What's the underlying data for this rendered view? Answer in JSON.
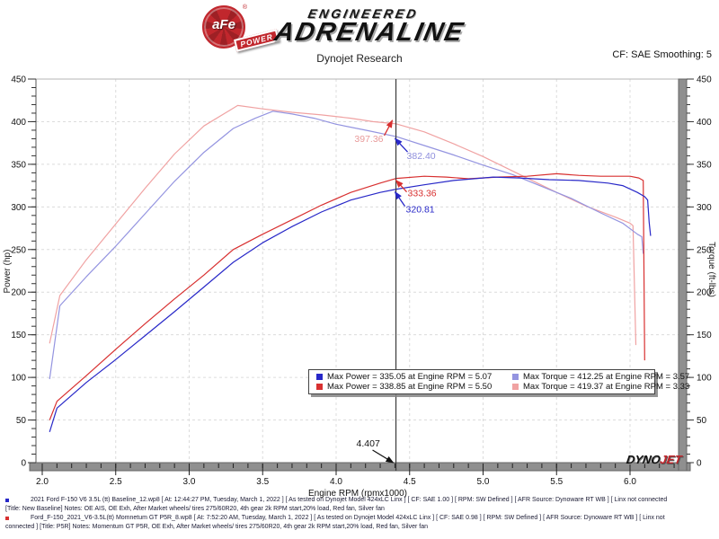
{
  "header": {
    "logo_circle": "aFe",
    "reg_mark": "®",
    "logo_banner": "POWER",
    "brand_line1": "ENGINEERED",
    "brand_line2": "ADRENALINE",
    "subtitle": "Dynojet Research",
    "smoothing": "CF: SAE Smoothing: 5"
  },
  "footer_logo": {
    "dyno": "DYNO",
    "jet": "JET"
  },
  "legend": {
    "entries": [
      {
        "label": "Max Power = 335.05 at Engine RPM = 5.07",
        "color": "#2828c8"
      },
      {
        "label": "Max Torque = 412.25 at Engine RPM = 3.57",
        "color": "#9494e0"
      },
      {
        "label": "Max Power = 338.85 at Engine RPM = 5.50",
        "color": "#d83030"
      },
      {
        "label": "Max Torque = 419.37 at Engine RPM = 3.33",
        "color": "#f0a2a2"
      }
    ]
  },
  "runs": [
    {
      "color": "#2828c8",
      "line1": "2021 Ford F-150 V6 3.5L (tt) Baseline_12.wp8 [ At: 12:44:27 PM, Tuesday, March 1, 2022 ] [ As tested on Dynojet Model 424xLC Linx ] [ CF: SAE 1.00 ] [ RPM: SW Defined ] [ AFR Source: Dynoware RT WB ] [ Linx not connected",
      "line2": "[Title: New Baseline]  Notes: OE AIS, OE Exh, After Market wheels/ tires 275/60R20, 4th gear 2k RPM start,20% load, Red fan, Silver fan"
    },
    {
      "color": "#d83030",
      "line1": "Ford_F-150_2021_V6-3.5L(tt) Momnetum GT P5R_8.wp8 [ At: 7:52:20 AM, Tuesday, March 1, 2022 ] [ As tested on Dynojet Model 424xLC Linx ] [ CF: SAE 0.98 ] [ RPM: SW Defined ] [ AFR Source: Dynoware RT WB ] [ Linx not",
      "line2": "connected ] [Title: P5R]  Notes: Momentum GT  P5R, OE Exh, After Market wheels/ tires 275/60R20, 4th gear 2k RPM start,20% load, Red fan, Silver fan"
    }
  ],
  "chart_data": {
    "type": "line",
    "xlabel": "Engine RPM (rpmx1000)",
    "ylabel_left": "Power (hp)",
    "ylabel_right": "Torque (ft-lbs)",
    "x_ticks": [
      "2.0",
      "2.5",
      "3.0",
      "3.5",
      "4.0",
      "4.5",
      "5.0",
      "5.5",
      "6.0"
    ],
    "x_minor_step": 0.1,
    "x_axis_max": 6.33,
    "y_ticks": [
      0,
      50,
      100,
      150,
      200,
      250,
      300,
      350,
      400,
      450
    ],
    "y_minor_step": 10,
    "y_range": [
      0,
      450
    ],
    "grid": true,
    "legend_position": "bottom-center",
    "cursor": {
      "rpm": 4.407,
      "label": "4.407"
    },
    "series": [
      {
        "name": "torque-momentum-gt",
        "axis": "right",
        "color": "#f0a2a2",
        "points": [
          [
            2.05,
            140
          ],
          [
            2.12,
            196
          ],
          [
            2.3,
            238
          ],
          [
            2.5,
            280
          ],
          [
            2.7,
            322
          ],
          [
            2.9,
            362
          ],
          [
            3.1,
            395
          ],
          [
            3.33,
            419
          ],
          [
            3.5,
            415
          ],
          [
            3.7,
            411
          ],
          [
            3.9,
            408
          ],
          [
            4.1,
            404
          ],
          [
            4.25,
            400
          ],
          [
            4.41,
            397.4
          ],
          [
            4.6,
            388
          ],
          [
            4.8,
            374
          ],
          [
            5.0,
            359
          ],
          [
            5.25,
            338
          ],
          [
            5.5,
            317
          ],
          [
            5.7,
            301
          ],
          [
            5.9,
            288
          ],
          [
            6.0,
            281
          ],
          [
            6.02,
            278
          ],
          [
            6.04,
            138
          ]
        ]
      },
      {
        "name": "torque-baseline",
        "axis": "right",
        "color": "#9494e0",
        "points": [
          [
            2.05,
            98
          ],
          [
            2.12,
            184
          ],
          [
            2.3,
            218
          ],
          [
            2.5,
            254
          ],
          [
            2.7,
            292
          ],
          [
            2.9,
            330
          ],
          [
            3.1,
            364
          ],
          [
            3.3,
            392
          ],
          [
            3.45,
            404
          ],
          [
            3.57,
            412.3
          ],
          [
            3.7,
            409
          ],
          [
            3.85,
            404
          ],
          [
            4.0,
            397
          ],
          [
            4.2,
            390
          ],
          [
            4.41,
            382.4
          ],
          [
            4.6,
            372
          ],
          [
            4.8,
            361
          ],
          [
            5.0,
            349
          ],
          [
            5.2,
            338
          ],
          [
            5.4,
            324
          ],
          [
            5.6,
            310
          ],
          [
            5.8,
            293
          ],
          [
            5.95,
            281
          ],
          [
            6.05,
            268
          ],
          [
            6.08,
            265
          ],
          [
            6.09,
            245
          ]
        ]
      },
      {
        "name": "power-momentum-gt",
        "axis": "left",
        "color": "#d83030",
        "points": [
          [
            2.05,
            50
          ],
          [
            2.1,
            72
          ],
          [
            2.3,
            102
          ],
          [
            2.5,
            133
          ],
          [
            2.7,
            163
          ],
          [
            2.9,
            192
          ],
          [
            3.1,
            220
          ],
          [
            3.3,
            250
          ],
          [
            3.5,
            268
          ],
          [
            3.7,
            285
          ],
          [
            3.9,
            302
          ],
          [
            4.1,
            317
          ],
          [
            4.3,
            328
          ],
          [
            4.41,
            333.4
          ],
          [
            4.6,
            336
          ],
          [
            4.75,
            335
          ],
          [
            4.9,
            333
          ],
          [
            5.1,
            335
          ],
          [
            5.3,
            336
          ],
          [
            5.5,
            338.9
          ],
          [
            5.65,
            337
          ],
          [
            5.8,
            336
          ],
          [
            6.0,
            336
          ],
          [
            6.06,
            334
          ],
          [
            6.09,
            331
          ],
          [
            6.1,
            120
          ]
        ]
      },
      {
        "name": "power-baseline",
        "axis": "left",
        "color": "#2828c8",
        "points": [
          [
            2.05,
            36
          ],
          [
            2.1,
            64
          ],
          [
            2.3,
            94
          ],
          [
            2.5,
            121
          ],
          [
            2.7,
            149
          ],
          [
            2.9,
            177
          ],
          [
            3.1,
            206
          ],
          [
            3.3,
            235
          ],
          [
            3.5,
            258
          ],
          [
            3.7,
            277
          ],
          [
            3.9,
            294
          ],
          [
            4.1,
            308
          ],
          [
            4.3,
            317
          ],
          [
            4.41,
            320.8
          ],
          [
            4.6,
            326
          ],
          [
            4.8,
            331
          ],
          [
            5.07,
            335
          ],
          [
            5.25,
            334
          ],
          [
            5.45,
            332
          ],
          [
            5.65,
            331
          ],
          [
            5.85,
            328
          ],
          [
            5.95,
            325
          ],
          [
            6.05,
            317
          ],
          [
            6.1,
            312
          ],
          [
            6.12,
            308
          ],
          [
            6.13,
            282
          ],
          [
            6.14,
            266
          ]
        ]
      }
    ],
    "annotations": [
      {
        "label": "397.36",
        "rpm": 4.407,
        "value": 397.36,
        "text_color": "#e89a9a",
        "arrow_color": "#d83030"
      },
      {
        "label": "382.40",
        "rpm": 4.407,
        "value": 382.4,
        "text_color": "#8f8fdd",
        "arrow_color": "#2828c8"
      },
      {
        "label": "333.36",
        "rpm": 4.407,
        "value": 333.36,
        "text_color": "#d83030",
        "arrow_color": "#d83030"
      },
      {
        "label": "320.81",
        "rpm": 4.407,
        "value": 320.81,
        "text_color": "#2828c8",
        "arrow_color": "#2828c8"
      }
    ]
  }
}
